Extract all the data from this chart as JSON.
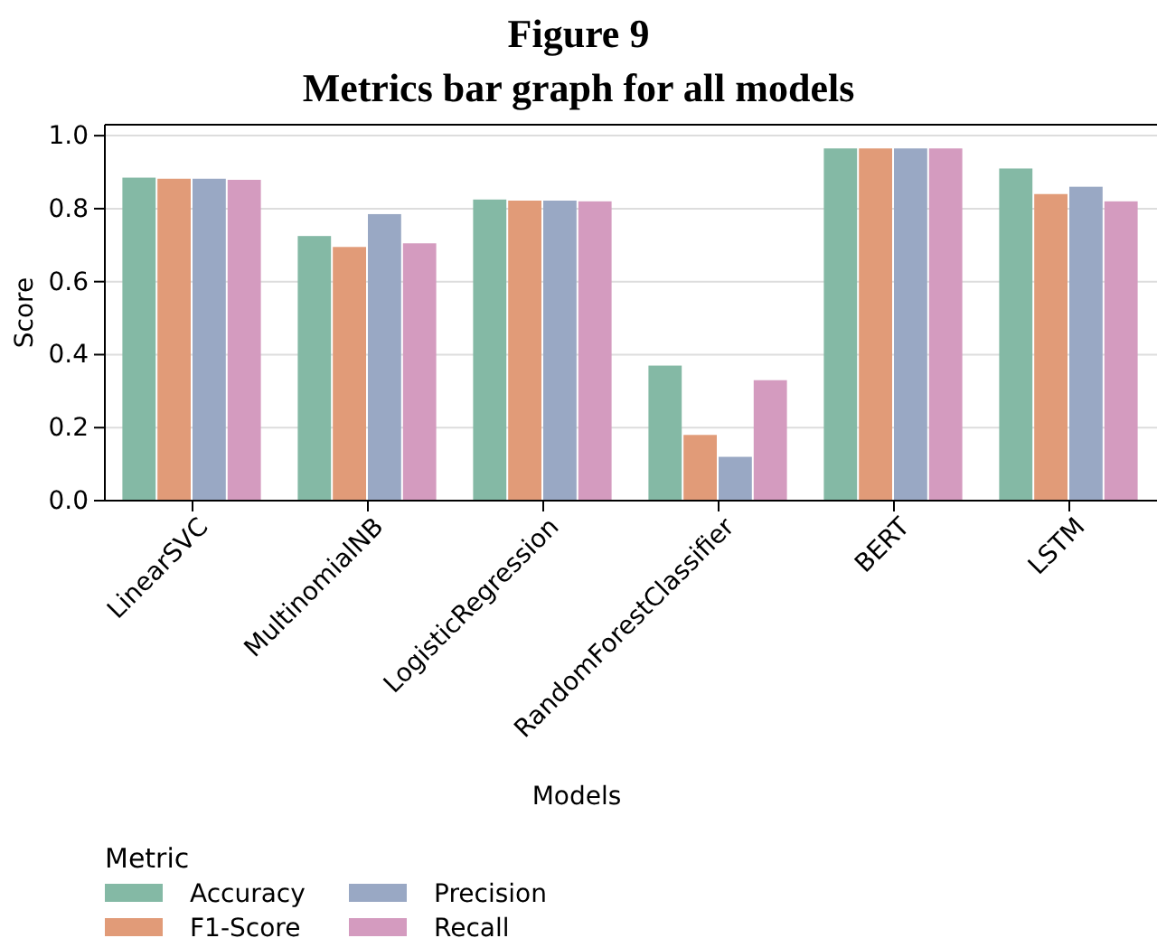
{
  "chart_data": {
    "type": "bar",
    "title": "Figure 9",
    "subtitle": "Metrics bar graph for all models",
    "xlabel": "Models",
    "ylabel": "Score",
    "legend_title": "Metric",
    "categories": [
      "LinearSVC",
      "MultinomialNB",
      "LogisticRegression",
      "RandomForestClassifier",
      "BERT",
      "LSTM"
    ],
    "series": [
      {
        "name": "Accuracy",
        "color": "#84b9a5",
        "values": [
          0.885,
          0.725,
          0.825,
          0.37,
          0.965,
          0.91
        ]
      },
      {
        "name": "F1-Score",
        "color": "#e19b78",
        "values": [
          0.882,
          0.695,
          0.822,
          0.18,
          0.965,
          0.84
        ]
      },
      {
        "name": "Precision",
        "color": "#99a8c4",
        "values": [
          0.882,
          0.785,
          0.822,
          0.12,
          0.965,
          0.86
        ]
      },
      {
        "name": "Recall",
        "color": "#d49bbf",
        "values": [
          0.879,
          0.705,
          0.82,
          0.33,
          0.965,
          0.82
        ]
      }
    ],
    "ylim": [
      0,
      1.03
    ],
    "yticks": [
      {
        "value": 0,
        "label": "0.0"
      },
      {
        "value": 0.2,
        "label": "0.2"
      },
      {
        "value": 0.4,
        "label": "0.4"
      },
      {
        "value": 0.6,
        "label": "0.6"
      },
      {
        "value": 0.8,
        "label": "0.8"
      },
      {
        "value": 1,
        "label": "1.0"
      }
    ],
    "grid": "y",
    "legend": "bottom left"
  }
}
